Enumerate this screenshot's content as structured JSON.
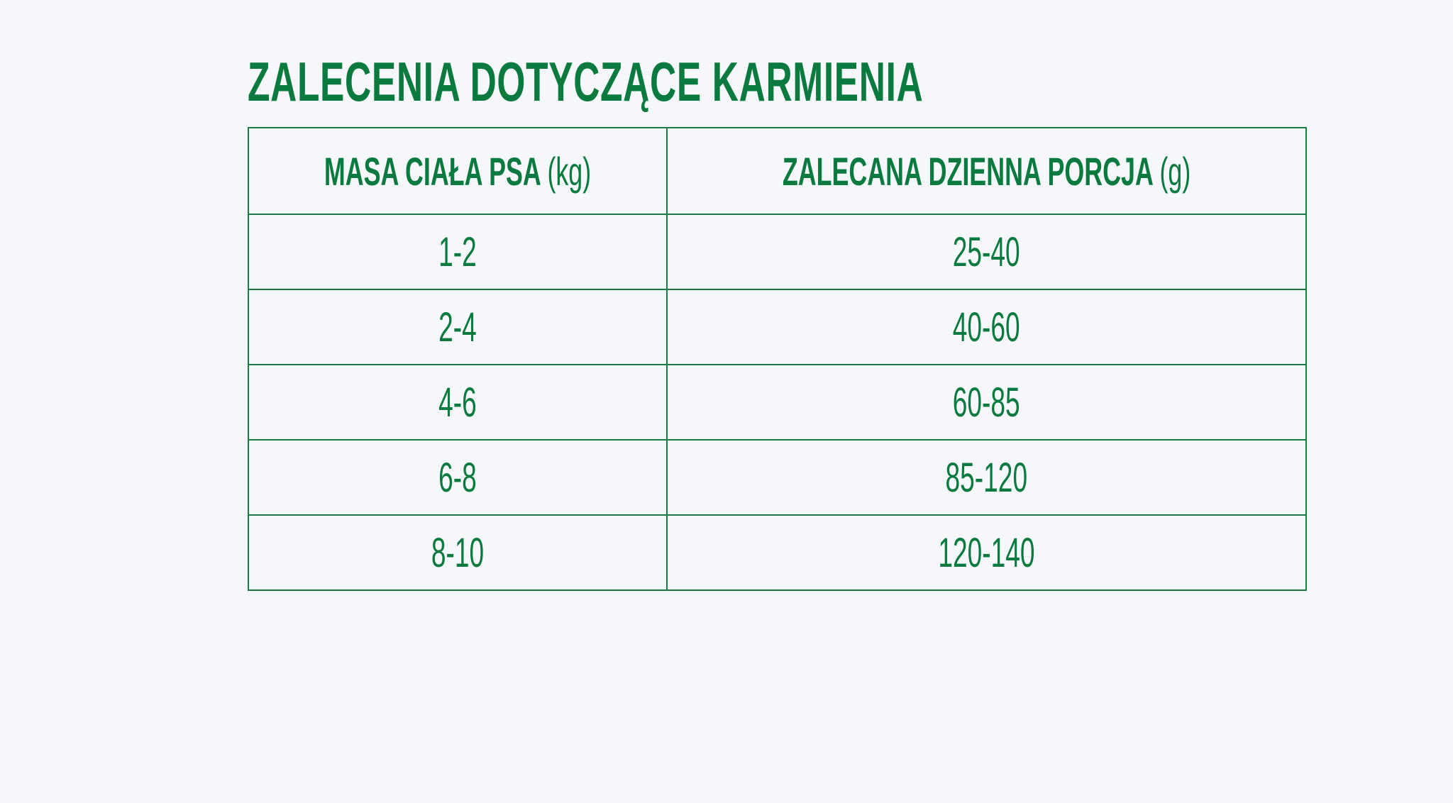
{
  "title": "ZALECENIA DOTYCZĄCE KARMIENIA",
  "accent_color": "#0b7a3e",
  "table": {
    "headers": [
      {
        "label": "MASA CIAŁA PSA",
        "unit": "(kg)"
      },
      {
        "label": "ZALECANA DZIENNA PORCJA",
        "unit": "(g)"
      }
    ],
    "rows": [
      [
        "1-2",
        "25-40"
      ],
      [
        "2-4",
        "40-60"
      ],
      [
        "4-6",
        "60-85"
      ],
      [
        "6-8",
        "85-120"
      ],
      [
        "8-10",
        "120-140"
      ]
    ]
  }
}
